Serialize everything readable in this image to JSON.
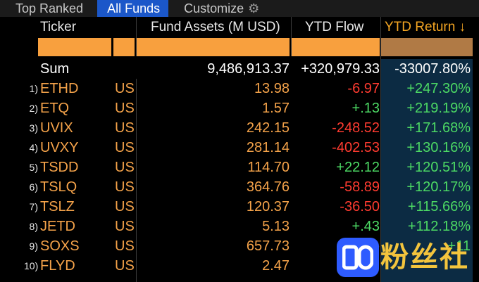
{
  "tabs": [
    {
      "label": "Top Ranked",
      "active": false
    },
    {
      "label": "All Funds",
      "active": true
    },
    {
      "label": "Customize",
      "active": false
    }
  ],
  "header": {
    "ticker": "Ticker",
    "fund_assets": "Fund Assets (M USD)",
    "ytd_flow": "YTD Flow",
    "ytd_return": "YTD Return ↓"
  },
  "sum": {
    "label": "Sum",
    "fund_assets": "9,486,913.37",
    "ytd_flow": "+320,979.33",
    "ytd_return": "-33007.80%"
  },
  "rows": [
    {
      "rank": "1)",
      "ticker": "ETHD",
      "country": "US",
      "assets": "13.98",
      "flow": "-6.97",
      "ret": "+247.30%"
    },
    {
      "rank": "2)",
      "ticker": "ETQ",
      "country": "US",
      "assets": "1.57",
      "flow": "+.13",
      "ret": "+219.19%"
    },
    {
      "rank": "3)",
      "ticker": "UVIX",
      "country": "US",
      "assets": "242.15",
      "flow": "-248.52",
      "ret": "+171.68%"
    },
    {
      "rank": "4)",
      "ticker": "UVXY",
      "country": "US",
      "assets": "281.14",
      "flow": "-402.53",
      "ret": "+130.16%"
    },
    {
      "rank": "5)",
      "ticker": "TSDD",
      "country": "US",
      "assets": "114.70",
      "flow": "+22.12",
      "ret": "+120.51%"
    },
    {
      "rank": "6)",
      "ticker": "TSLQ",
      "country": "US",
      "assets": "364.76",
      "flow": "-58.89",
      "ret": "+120.17%"
    },
    {
      "rank": "7)",
      "ticker": "TSLZ",
      "country": "US",
      "assets": "120.37",
      "flow": "-36.50",
      "ret": "+115.66%"
    },
    {
      "rank": "8)",
      "ticker": "JETD",
      "country": "US",
      "assets": "5.13",
      "flow": "+.43",
      "ret": "+112.18%"
    },
    {
      "rank": "9)",
      "ticker": "SOXS",
      "country": "US",
      "assets": "657.73",
      "flow": "-",
      "ret": "+11"
    },
    {
      "rank": "10)",
      "ticker": "FLYD",
      "country": "US",
      "assets": "2.47",
      "flow": "",
      "ret": ""
    }
  ],
  "watermark": {
    "text": "粉丝社区",
    "logo": "fensi-logo"
  },
  "colors": {
    "orange": "#f8a03e",
    "positive": "#4cd964",
    "negative": "#ff3b30",
    "active_tab": "#1b57c9",
    "ytd_column": "#0c2b43"
  }
}
